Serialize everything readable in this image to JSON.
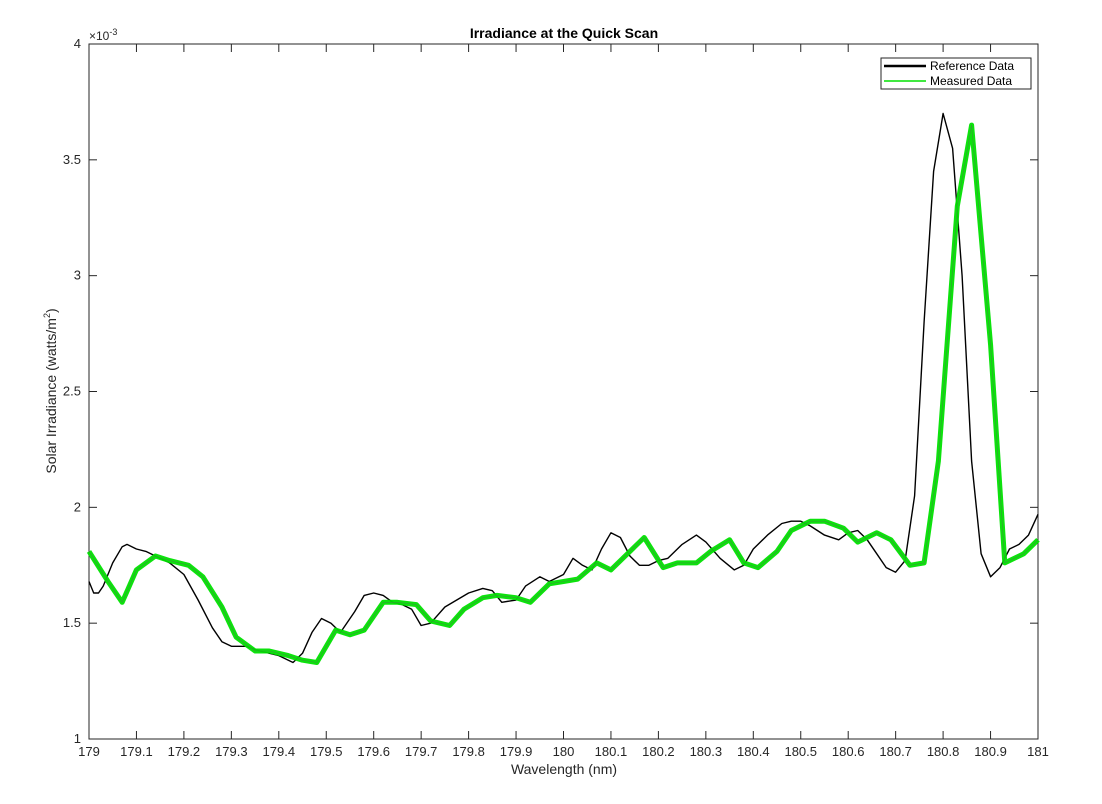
{
  "chart_data": {
    "type": "line",
    "title": "Irradiance at the Quick Scan",
    "xlabel": "Wavelength (nm)",
    "ylabel": "Solar Irradiance (watts/m",
    "ylabel_sup": "2",
    "ylabel_end": ")",
    "y_exponent_prefix": "×10",
    "y_exponent": "-3",
    "xlim": [
      179,
      181
    ],
    "ylim": [
      1,
      4
    ],
    "x_ticks": [
      179,
      179.1,
      179.2,
      179.3,
      179.4,
      179.5,
      179.6,
      179.7,
      179.8,
      179.9,
      180,
      180.1,
      180.2,
      180.3,
      180.4,
      180.5,
      180.6,
      180.7,
      180.8,
      180.9,
      181
    ],
    "x_tick_labels": [
      "179",
      "179.1",
      "179.2",
      "179.3",
      "179.4",
      "179.5",
      "179.6",
      "179.7",
      "179.8",
      "179.9",
      "180",
      "180.1",
      "180.2",
      "180.3",
      "180.4",
      "180.5",
      "180.6",
      "180.7",
      "180.8",
      "180.9",
      "181"
    ],
    "y_ticks": [
      1,
      1.5,
      2,
      2.5,
      3,
      3.5,
      4
    ],
    "y_tick_labels": [
      "1",
      "1.5",
      "2",
      "2.5",
      "3",
      "3.5",
      "4"
    ],
    "grid": false,
    "legend_position": "top-right",
    "series": [
      {
        "name": "Reference Data",
        "color": "#000000",
        "x": [
          179.0,
          179.01,
          179.02,
          179.03,
          179.05,
          179.07,
          179.08,
          179.1,
          179.12,
          179.14,
          179.17,
          179.2,
          179.23,
          179.26,
          179.28,
          179.3,
          179.33,
          179.36,
          179.4,
          179.43,
          179.45,
          179.47,
          179.49,
          179.51,
          179.53,
          179.56,
          179.58,
          179.6,
          179.62,
          179.64,
          179.66,
          179.68,
          179.7,
          179.72,
          179.75,
          179.8,
          179.83,
          179.85,
          179.87,
          179.9,
          179.92,
          179.95,
          179.97,
          180.0,
          180.02,
          180.04,
          180.06,
          180.08,
          180.1,
          180.12,
          180.14,
          180.16,
          180.18,
          180.2,
          180.22,
          180.25,
          180.28,
          180.3,
          180.33,
          180.36,
          180.38,
          180.4,
          180.43,
          180.46,
          180.48,
          180.5,
          180.52,
          180.55,
          180.58,
          180.6,
          180.62,
          180.64,
          180.66,
          180.68,
          180.7,
          180.72,
          180.74,
          180.76,
          180.78,
          180.8,
          180.82,
          180.84,
          180.86,
          180.88,
          180.9,
          180.92,
          180.94,
          180.96,
          180.98,
          181.0
        ],
        "y": [
          1.68,
          1.63,
          1.63,
          1.66,
          1.76,
          1.83,
          1.84,
          1.82,
          1.81,
          1.79,
          1.76,
          1.71,
          1.6,
          1.48,
          1.42,
          1.4,
          1.4,
          1.38,
          1.36,
          1.33,
          1.37,
          1.46,
          1.52,
          1.5,
          1.46,
          1.55,
          1.62,
          1.63,
          1.62,
          1.59,
          1.58,
          1.56,
          1.49,
          1.5,
          1.57,
          1.63,
          1.65,
          1.64,
          1.59,
          1.6,
          1.66,
          1.7,
          1.68,
          1.71,
          1.78,
          1.75,
          1.73,
          1.82,
          1.89,
          1.87,
          1.79,
          1.75,
          1.75,
          1.77,
          1.78,
          1.84,
          1.88,
          1.85,
          1.78,
          1.73,
          1.75,
          1.82,
          1.88,
          1.93,
          1.94,
          1.94,
          1.92,
          1.88,
          1.86,
          1.89,
          1.9,
          1.86,
          1.8,
          1.74,
          1.72,
          1.77,
          2.05,
          2.8,
          3.45,
          3.7,
          3.55,
          3.0,
          2.2,
          1.8,
          1.7,
          1.74,
          1.82,
          1.84,
          1.88,
          1.97
        ]
      },
      {
        "name": "Measured Data",
        "color": "#00e000",
        "x": [
          179.0,
          179.04,
          179.07,
          179.1,
          179.14,
          179.17,
          179.21,
          179.24,
          179.28,
          179.31,
          179.35,
          179.38,
          179.42,
          179.45,
          179.48,
          179.52,
          179.55,
          179.58,
          179.62,
          179.65,
          179.69,
          179.72,
          179.76,
          179.79,
          179.83,
          179.86,
          179.9,
          179.93,
          179.97,
          180.0,
          180.03,
          180.07,
          180.1,
          180.14,
          180.17,
          180.21,
          180.24,
          180.28,
          180.31,
          180.35,
          180.38,
          180.41,
          180.45,
          180.48,
          180.52,
          180.55,
          180.59,
          180.62,
          180.66,
          180.69,
          180.73,
          180.76,
          180.79,
          180.83,
          180.86,
          180.9,
          180.93,
          180.97,
          181.0
        ],
        "y": [
          1.81,
          1.68,
          1.59,
          1.73,
          1.79,
          1.77,
          1.75,
          1.7,
          1.57,
          1.44,
          1.38,
          1.38,
          1.36,
          1.34,
          1.33,
          1.47,
          1.45,
          1.47,
          1.59,
          1.59,
          1.58,
          1.51,
          1.49,
          1.56,
          1.61,
          1.62,
          1.61,
          1.59,
          1.67,
          1.68,
          1.69,
          1.76,
          1.73,
          1.81,
          1.87,
          1.74,
          1.76,
          1.76,
          1.81,
          1.86,
          1.76,
          1.74,
          1.81,
          1.9,
          1.94,
          1.94,
          1.91,
          1.85,
          1.89,
          1.86,
          1.75,
          1.76,
          2.2,
          3.3,
          3.65,
          2.7,
          1.76,
          1.8,
          1.86
        ]
      }
    ]
  }
}
